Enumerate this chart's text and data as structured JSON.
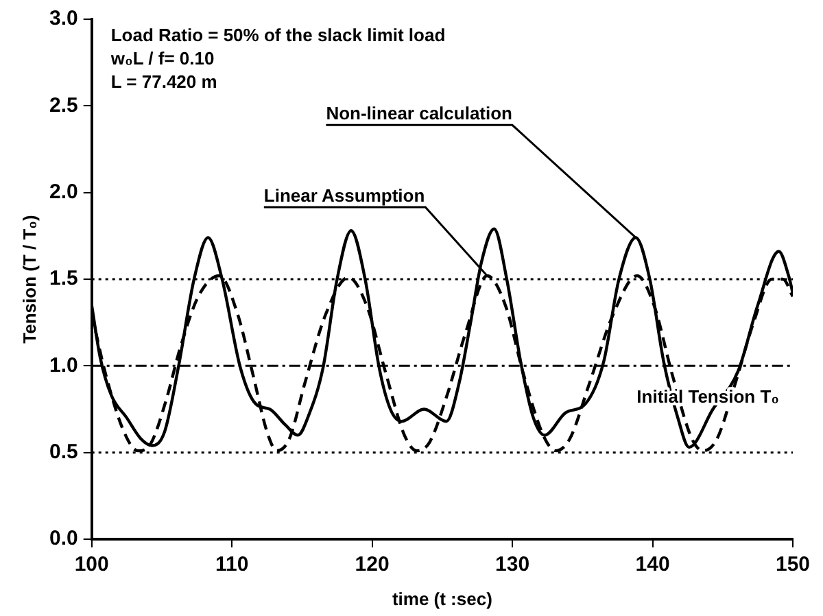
{
  "chart_data": {
    "type": "line",
    "xlabel": "time (t :sec)",
    "ylabel": "Tension (T / T₀)",
    "xlim": [
      100,
      150
    ],
    "xticks": [
      100,
      110,
      120,
      130,
      140,
      150
    ],
    "ylim": [
      0,
      3
    ],
    "yticks": [
      {
        "value": 0,
        "label": "0.0"
      },
      {
        "value": 0.5,
        "label": "0.5"
      },
      {
        "value": 1,
        "label": "1.0"
      },
      {
        "value": 1.5,
        "label": "1.5"
      },
      {
        "value": 2,
        "label": "2.0"
      },
      {
        "value": 2.5,
        "label": "2.5"
      },
      {
        "value": 3,
        "label": "3.0"
      }
    ],
    "grid": false,
    "legend": false,
    "marker": "none",
    "annotations": [
      "Load Ratio = 50% of the slack limit load",
      "w₀L / f= 0.10",
      "L = 77.420 m"
    ],
    "ref_lines": [
      {
        "axis": "y",
        "value": 1.5,
        "line_style": "dotted",
        "color": "#000000"
      },
      {
        "axis": "y",
        "value": 1,
        "label": "Initial Tension T₀",
        "line_style": "dashdot",
        "color": "#000000"
      },
      {
        "axis": "y",
        "value": 0.5,
        "line_style": "dotted",
        "color": "#000000"
      }
    ],
    "series": [
      {
        "name": "Non-linear calculation",
        "color": "#000000",
        "line_style": "solid",
        "x": [
          100,
          100.6,
          101.4,
          102.5,
          103.5,
          104.3,
          105.2,
          106.2,
          107.3,
          108.3,
          109.3,
          110.6,
          111.7,
          112.7,
          113.8,
          114.7,
          115.5,
          116.5,
          117.5,
          118.5,
          119.5,
          120.5,
          121.3,
          122.1,
          123.7,
          125.3,
          126.2,
          127,
          127.8,
          128.7,
          129.6,
          130.6,
          131.5,
          132.3,
          133.8,
          135.2,
          136.5,
          137.6,
          138.8,
          139.8,
          140.8,
          141.8,
          142.6,
          144.3,
          146.1,
          147.5,
          149,
          149.7,
          150
        ],
        "values": [
          1.35,
          1.05,
          0.83,
          0.7,
          0.58,
          0.54,
          0.62,
          1.0,
          1.5,
          1.74,
          1.5,
          0.99,
          0.78,
          0.75,
          0.66,
          0.6,
          0.72,
          0.99,
          1.5,
          1.78,
          1.5,
          0.99,
          0.75,
          0.68,
          0.75,
          0.68,
          0.9,
          1.24,
          1.6,
          1.79,
          1.5,
          1.02,
          0.7,
          0.6,
          0.73,
          0.78,
          1.02,
          1.5,
          1.74,
          1.5,
          1.02,
          0.7,
          0.53,
          0.75,
          0.97,
          1.35,
          1.66,
          1.52,
          1.42
        ]
      },
      {
        "name": "Linear Assumption",
        "color": "#000000",
        "line_style": "dashed",
        "x": [
          100,
          101,
          102.3,
          103.3,
          104.2,
          105.3,
          106.3,
          107.6,
          109.1,
          110.4,
          111.5,
          112.5,
          113.2,
          114.1,
          115.2,
          116.7,
          118.3,
          119.6,
          121,
          122.3,
          123.2,
          124.1,
          125.3,
          126.7,
          128.2,
          129.5,
          130.8,
          132.2,
          133.1,
          134.1,
          135.5,
          137.2,
          138.9,
          140.1,
          141.4,
          142.8,
          143.6,
          144.6,
          145.9,
          147.2,
          148.5,
          149.3,
          150
        ],
        "values": [
          1.3,
          0.95,
          0.62,
          0.51,
          0.55,
          0.8,
          1.1,
          1.4,
          1.52,
          1.3,
          0.95,
          0.62,
          0.51,
          0.58,
          0.9,
          1.3,
          1.51,
          1.35,
          0.95,
          0.6,
          0.51,
          0.56,
          0.82,
          1.2,
          1.52,
          1.35,
          0.95,
          0.6,
          0.51,
          0.58,
          0.9,
          1.3,
          1.52,
          1.35,
          0.95,
          0.58,
          0.51,
          0.58,
          0.9,
          1.25,
          1.5,
          1.5,
          1.4
        ]
      }
    ]
  }
}
